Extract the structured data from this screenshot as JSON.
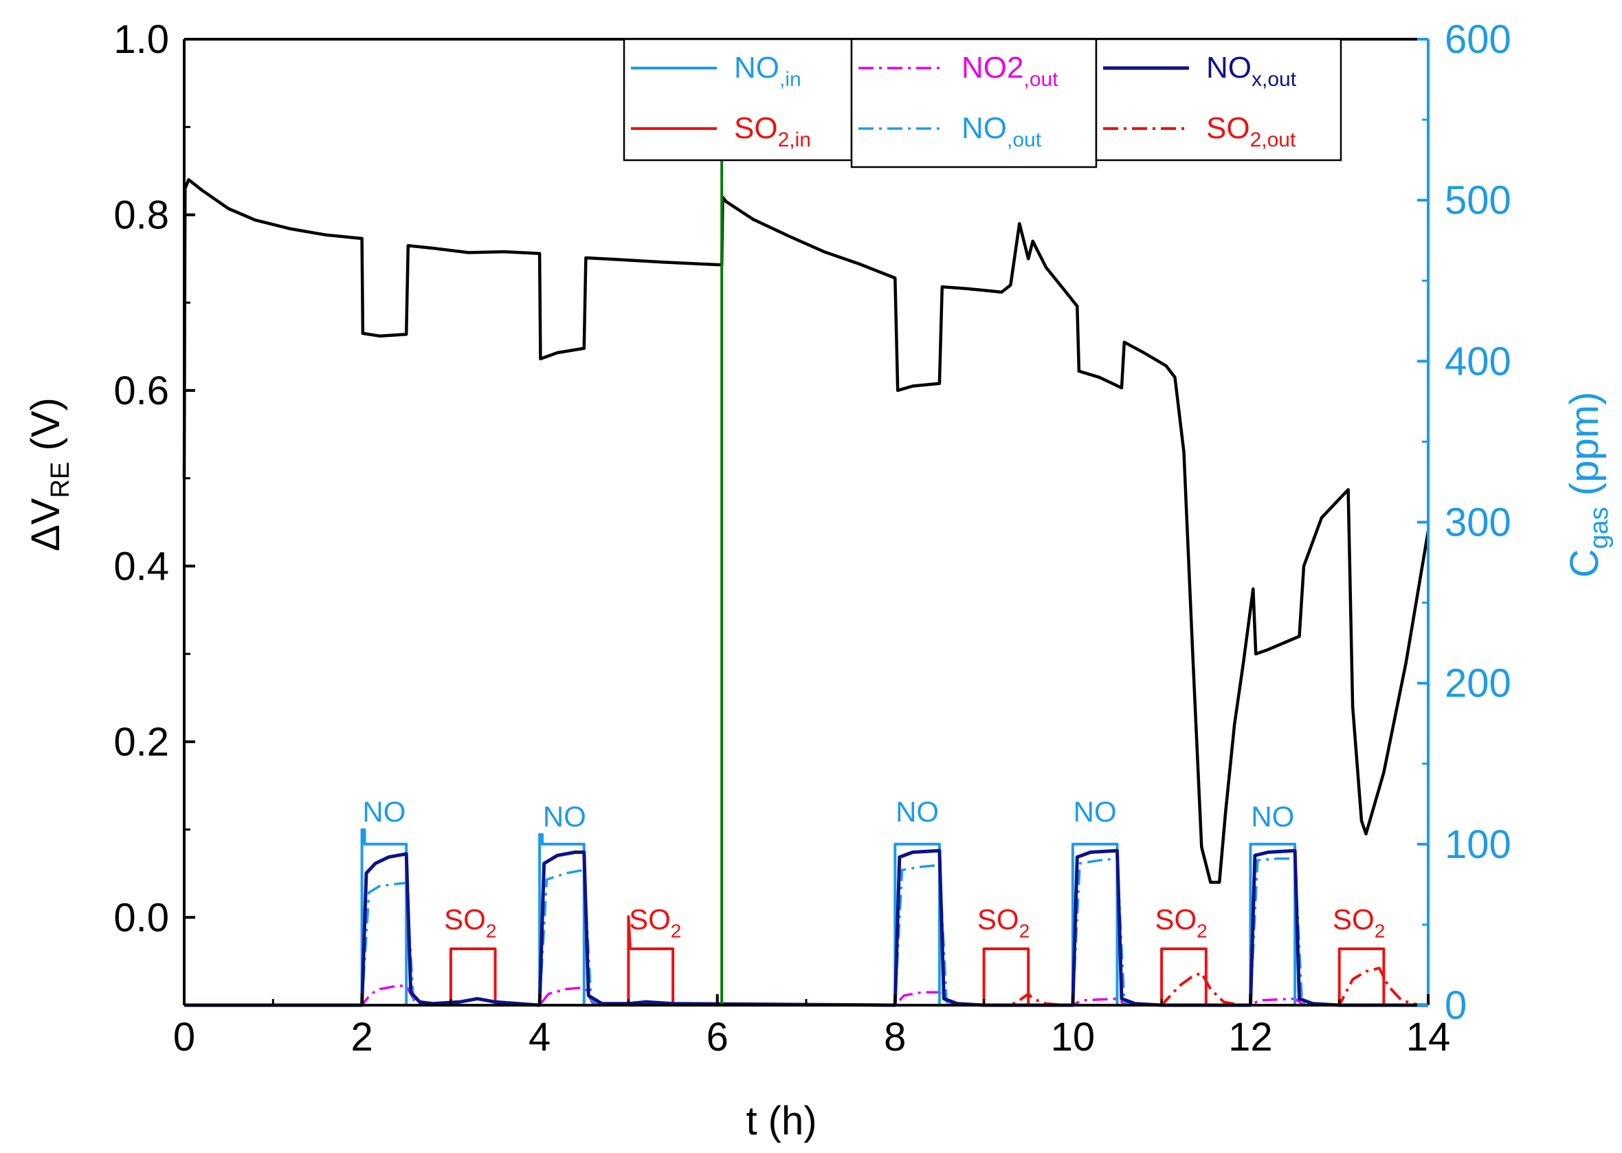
{
  "chart_data": {
    "type": "line",
    "xlabel": "t (h)",
    "ylabel": {
      "main": "ΔV",
      "sub": "RE",
      "unit": " (V)"
    },
    "y2label": {
      "main": "C",
      "sub": "gas",
      "unit": " (ppm)"
    },
    "xlim": [
      0,
      14
    ],
    "ylim": [
      -0.1,
      1.0
    ],
    "y2lim": [
      0,
      600
    ],
    "x_ticks": [
      0,
      2,
      4,
      6,
      8,
      10,
      12,
      14
    ],
    "x_tick_labels": [
      "0",
      "2",
      "4",
      "6",
      "8",
      "10",
      "12",
      "14"
    ],
    "y_ticks": [
      0.0,
      0.2,
      0.4,
      0.6,
      0.8,
      1.0
    ],
    "y_tick_labels": [
      "0.0",
      "0.2",
      "0.4",
      "0.6",
      "0.8",
      "1.0"
    ],
    "y2_ticks": [
      0,
      100,
      200,
      300,
      400,
      500,
      600
    ],
    "y2_tick_labels": [
      "0",
      "100",
      "200",
      "300",
      "400",
      "500",
      "600"
    ],
    "colors": {
      "dv": "#000000",
      "no_in": "#1E9BE8",
      "so2_in": "#EE1111",
      "no2_out": "#E600E6",
      "no_out": "#1E9BE8",
      "nox_out": "#0D128A",
      "so2_out": "#EE1111",
      "marker": "#0A7A0A",
      "right_axis": "#1E9BE8"
    },
    "legend": [
      {
        "key": "no_in",
        "main": "NO",
        "sub": ",in",
        "style": "solid"
      },
      {
        "key": "no2_out",
        "main": "NO2",
        "sub": ",out",
        "style": "dashdot"
      },
      {
        "key": "nox_out",
        "main": "NO",
        "sub": "x,out",
        "style": "solid"
      },
      {
        "key": "so2_in",
        "main": "SO",
        "sub": "2,in",
        "style": "solid"
      },
      {
        "key": "no_out",
        "main": "NO",
        "sub": ",out",
        "style": "dashdot"
      },
      {
        "key": "so2_out",
        "main": "SO",
        "sub": "2,out",
        "style": "dashdot"
      }
    ],
    "marker_line_x": 6.05,
    "series": [
      {
        "name": "ΔV_RE",
        "axis": "left",
        "points": [
          [
            0,
            0.5
          ],
          [
            0.01,
            0.83
          ],
          [
            0.05,
            0.84
          ],
          [
            0.2,
            0.828
          ],
          [
            0.5,
            0.807
          ],
          [
            0.8,
            0.794
          ],
          [
            1.2,
            0.784
          ],
          [
            1.6,
            0.777
          ],
          [
            2.0,
            0.773
          ],
          [
            2.01,
            0.665
          ],
          [
            2.2,
            0.662
          ],
          [
            2.5,
            0.664
          ],
          [
            2.52,
            0.765
          ],
          [
            2.8,
            0.762
          ],
          [
            3.2,
            0.757
          ],
          [
            3.6,
            0.758
          ],
          [
            4.0,
            0.756
          ],
          [
            4.01,
            0.636
          ],
          [
            4.2,
            0.643
          ],
          [
            4.5,
            0.648
          ],
          [
            4.52,
            0.751
          ],
          [
            4.9,
            0.749
          ],
          [
            5.4,
            0.746
          ],
          [
            6.05,
            0.743
          ],
          [
            6.06,
            0.82
          ],
          [
            6.1,
            0.815
          ],
          [
            6.4,
            0.795
          ],
          [
            6.8,
            0.776
          ],
          [
            7.2,
            0.758
          ],
          [
            7.6,
            0.744
          ],
          [
            8.0,
            0.728
          ],
          [
            8.03,
            0.6
          ],
          [
            8.2,
            0.605
          ],
          [
            8.5,
            0.608
          ],
          [
            8.53,
            0.718
          ],
          [
            8.8,
            0.716
          ],
          [
            9.0,
            0.714
          ],
          [
            9.2,
            0.712
          ],
          [
            9.3,
            0.72
          ],
          [
            9.4,
            0.79
          ],
          [
            9.5,
            0.75
          ],
          [
            9.55,
            0.77
          ],
          [
            9.7,
            0.74
          ],
          [
            9.9,
            0.715
          ],
          [
            10.05,
            0.696
          ],
          [
            10.07,
            0.622
          ],
          [
            10.3,
            0.615
          ],
          [
            10.55,
            0.603
          ],
          [
            10.58,
            0.655
          ],
          [
            10.8,
            0.643
          ],
          [
            11.05,
            0.628
          ],
          [
            11.15,
            0.615
          ],
          [
            11.25,
            0.53
          ],
          [
            11.35,
            0.3
          ],
          [
            11.45,
            0.08
          ],
          [
            11.55,
            0.04
          ],
          [
            11.65,
            0.04
          ],
          [
            11.72,
            0.12
          ],
          [
            11.82,
            0.22
          ],
          [
            11.92,
            0.29
          ],
          [
            12.03,
            0.374
          ],
          [
            12.06,
            0.3
          ],
          [
            12.2,
            0.305
          ],
          [
            12.55,
            0.32
          ],
          [
            12.6,
            0.4
          ],
          [
            12.8,
            0.455
          ],
          [
            13.1,
            0.487
          ],
          [
            13.15,
            0.24
          ],
          [
            13.25,
            0.11
          ],
          [
            13.3,
            0.095
          ],
          [
            13.5,
            0.165
          ],
          [
            13.75,
            0.29
          ],
          [
            14.0,
            0.44
          ]
        ]
      },
      {
        "name": "NO,in",
        "axis": "right",
        "points": [
          [
            0,
            0
          ],
          [
            2.0,
            0
          ],
          [
            2.0,
            109
          ],
          [
            2.03,
            109
          ],
          [
            2.03,
            100
          ],
          [
            2.5,
            100
          ],
          [
            2.5,
            0
          ],
          [
            4.0,
            0
          ],
          [
            4.0,
            106
          ],
          [
            4.03,
            106
          ],
          [
            4.03,
            100
          ],
          [
            4.5,
            100
          ],
          [
            4.5,
            0
          ],
          [
            8.0,
            0
          ],
          [
            8.0,
            100
          ],
          [
            8.5,
            100
          ],
          [
            8.5,
            0
          ],
          [
            10.0,
            0
          ],
          [
            10.0,
            100
          ],
          [
            10.5,
            100
          ],
          [
            10.5,
            0
          ],
          [
            12.0,
            0
          ],
          [
            12.0,
            100
          ],
          [
            12.5,
            100
          ],
          [
            12.5,
            0
          ],
          [
            14,
            0
          ]
        ]
      },
      {
        "name": "SO2,in",
        "axis": "right",
        "points": [
          [
            0,
            0
          ],
          [
            3.0,
            0
          ],
          [
            3.0,
            35
          ],
          [
            3.5,
            35
          ],
          [
            3.5,
            0
          ],
          [
            5.0,
            0
          ],
          [
            5.0,
            55
          ],
          [
            5.02,
            35
          ],
          [
            5.5,
            35
          ],
          [
            5.5,
            0
          ],
          [
            9.0,
            0
          ],
          [
            9.0,
            35
          ],
          [
            9.5,
            35
          ],
          [
            9.5,
            0
          ],
          [
            11.0,
            0
          ],
          [
            11.0,
            35
          ],
          [
            11.5,
            35
          ],
          [
            11.5,
            0
          ],
          [
            13.0,
            0
          ],
          [
            13.0,
            35
          ],
          [
            13.5,
            35
          ],
          [
            13.5,
            0
          ],
          [
            14,
            0
          ]
        ]
      },
      {
        "name": "NO2,out",
        "axis": "right",
        "points": [
          [
            0,
            0
          ],
          [
            2.0,
            0
          ],
          [
            2.1,
            7
          ],
          [
            2.2,
            10
          ],
          [
            2.4,
            12
          ],
          [
            2.5,
            12
          ],
          [
            2.6,
            2
          ],
          [
            2.7,
            0
          ],
          [
            4.0,
            0
          ],
          [
            4.1,
            7
          ],
          [
            4.3,
            10
          ],
          [
            4.5,
            11
          ],
          [
            4.6,
            1
          ],
          [
            4.7,
            0
          ],
          [
            8.0,
            0
          ],
          [
            8.1,
            6
          ],
          [
            8.3,
            8
          ],
          [
            8.5,
            8
          ],
          [
            8.6,
            1
          ],
          [
            8.7,
            0
          ],
          [
            10.0,
            0
          ],
          [
            10.1,
            3
          ],
          [
            10.5,
            4
          ],
          [
            10.6,
            0
          ],
          [
            12.0,
            0
          ],
          [
            12.1,
            3
          ],
          [
            12.5,
            4
          ],
          [
            12.6,
            0
          ],
          [
            14,
            0
          ]
        ]
      },
      {
        "name": "NO,out",
        "axis": "right",
        "points": [
          [
            0,
            0
          ],
          [
            2.0,
            0
          ],
          [
            2.08,
            70
          ],
          [
            2.2,
            74
          ],
          [
            2.5,
            76
          ],
          [
            2.58,
            3
          ],
          [
            2.7,
            0
          ],
          [
            4.0,
            0
          ],
          [
            4.08,
            78
          ],
          [
            4.3,
            82
          ],
          [
            4.5,
            84
          ],
          [
            4.58,
            3
          ],
          [
            4.7,
            0
          ],
          [
            8.0,
            0
          ],
          [
            8.08,
            84
          ],
          [
            8.3,
            86
          ],
          [
            8.5,
            87
          ],
          [
            8.58,
            2
          ],
          [
            8.7,
            0
          ],
          [
            10.0,
            0
          ],
          [
            10.08,
            88
          ],
          [
            10.3,
            90
          ],
          [
            10.5,
            91
          ],
          [
            10.58,
            2
          ],
          [
            10.7,
            0
          ],
          [
            12.0,
            0
          ],
          [
            12.08,
            90
          ],
          [
            12.3,
            91
          ],
          [
            12.5,
            91
          ],
          [
            12.58,
            2
          ],
          [
            12.7,
            0
          ],
          [
            14,
            0
          ]
        ]
      },
      {
        "name": "NOx,out",
        "axis": "right",
        "points": [
          [
            0,
            0
          ],
          [
            2.0,
            0
          ],
          [
            2.05,
            82
          ],
          [
            2.15,
            88
          ],
          [
            2.3,
            92
          ],
          [
            2.5,
            94
          ],
          [
            2.55,
            8
          ],
          [
            2.65,
            2
          ],
          [
            2.8,
            1
          ],
          [
            3.1,
            2
          ],
          [
            3.3,
            4
          ],
          [
            3.5,
            2
          ],
          [
            4.0,
            0
          ],
          [
            4.05,
            88
          ],
          [
            4.2,
            93
          ],
          [
            4.4,
            95
          ],
          [
            4.5,
            95
          ],
          [
            4.55,
            6
          ],
          [
            4.7,
            1
          ],
          [
            5.0,
            1
          ],
          [
            5.2,
            2
          ],
          [
            5.5,
            1
          ],
          [
            8.0,
            0
          ],
          [
            8.05,
            92
          ],
          [
            8.2,
            95
          ],
          [
            8.5,
            96
          ],
          [
            8.55,
            4
          ],
          [
            8.7,
            1
          ],
          [
            9.0,
            0
          ],
          [
            10.0,
            0
          ],
          [
            10.05,
            92
          ],
          [
            10.2,
            95
          ],
          [
            10.5,
            96
          ],
          [
            10.55,
            4
          ],
          [
            10.7,
            1
          ],
          [
            11.0,
            0
          ],
          [
            12.0,
            0
          ],
          [
            12.05,
            93
          ],
          [
            12.2,
            95
          ],
          [
            12.5,
            96
          ],
          [
            12.55,
            4
          ],
          [
            12.7,
            1
          ],
          [
            13.0,
            0
          ],
          [
            14,
            0
          ]
        ]
      },
      {
        "name": "SO2,out",
        "axis": "right",
        "points": [
          [
            0,
            0
          ],
          [
            9.3,
            0
          ],
          [
            9.4,
            3
          ],
          [
            9.5,
            7
          ],
          [
            9.55,
            4
          ],
          [
            9.7,
            1
          ],
          [
            9.9,
            0
          ],
          [
            11.0,
            0
          ],
          [
            11.2,
            12
          ],
          [
            11.35,
            18
          ],
          [
            11.45,
            20
          ],
          [
            11.55,
            10
          ],
          [
            11.7,
            2
          ],
          [
            11.9,
            0
          ],
          [
            13.0,
            0
          ],
          [
            13.15,
            16
          ],
          [
            13.3,
            21
          ],
          [
            13.45,
            23
          ],
          [
            13.55,
            12
          ],
          [
            13.7,
            3
          ],
          [
            13.9,
            0
          ],
          [
            14,
            0
          ]
        ]
      }
    ],
    "annotations": [
      {
        "text": "NO",
        "sub": "",
        "x": 2.25,
        "y2": 109,
        "color_key": "no_in"
      },
      {
        "text": "NO",
        "sub": "",
        "x": 4.28,
        "y2": 106,
        "color_key": "no_in"
      },
      {
        "text": "NO",
        "sub": "",
        "x": 8.25,
        "y2": 109,
        "color_key": "no_in"
      },
      {
        "text": "NO",
        "sub": "",
        "x": 10.25,
        "y2": 109,
        "color_key": "no_in"
      },
      {
        "text": "NO",
        "sub": "",
        "x": 12.25,
        "y2": 106,
        "color_key": "no_in"
      },
      {
        "text": "SO",
        "sub": "2",
        "x": 3.22,
        "y2": 42,
        "color_key": "so2_in"
      },
      {
        "text": "SO",
        "sub": "2",
        "x": 5.3,
        "y2": 42,
        "color_key": "so2_in"
      },
      {
        "text": "SO",
        "sub": "2",
        "x": 9.22,
        "y2": 42,
        "color_key": "so2_in"
      },
      {
        "text": "SO",
        "sub": "2",
        "x": 11.22,
        "y2": 42,
        "color_key": "so2_in"
      },
      {
        "text": "SO",
        "sub": "2",
        "x": 13.22,
        "y2": 42,
        "color_key": "so2_in"
      }
    ]
  }
}
